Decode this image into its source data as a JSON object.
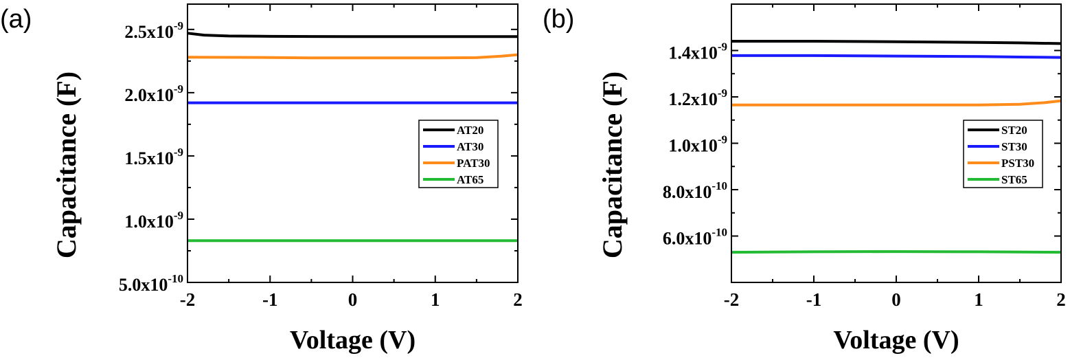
{
  "chart_data": [
    {
      "type": "line",
      "panel_label": "(a)",
      "title": "",
      "xlabel": "Voltage (V)",
      "ylabel": "Capacitance (F)",
      "xlim": [
        -2,
        2
      ],
      "ylim": [
        5e-10,
        2.7e-09
      ],
      "x_ticks": [
        {
          "value": -2,
          "label": "-2"
        },
        {
          "value": -1,
          "label": "-1"
        },
        {
          "value": 0,
          "label": "0"
        },
        {
          "value": 1,
          "label": "1"
        },
        {
          "value": 2,
          "label": "2"
        }
      ],
      "y_ticks": [
        {
          "value": 5e-10,
          "mant": "5.0x10",
          "exp": "-10"
        },
        {
          "value": 1e-09,
          "mant": "1.0x10",
          "exp": "-9"
        },
        {
          "value": 1.5e-09,
          "mant": "1.5x10",
          "exp": "-9"
        },
        {
          "value": 2e-09,
          "mant": "2.0x10",
          "exp": "-9"
        },
        {
          "value": 2.5e-09,
          "mant": "2.5x10",
          "exp": "-9"
        }
      ],
      "legend_position": "middle-right",
      "series": [
        {
          "name": "AT20",
          "color": "#000000",
          "x": [
            -2,
            -1.8,
            -1.5,
            -1,
            -0.5,
            0,
            0.5,
            1,
            1.5,
            2
          ],
          "y": [
            2.47e-09,
            2.455e-09,
            2.448e-09,
            2.445e-09,
            2.444e-09,
            2.443e-09,
            2.443e-09,
            2.443e-09,
            2.443e-09,
            2.443e-09
          ]
        },
        {
          "name": "AT30",
          "color": "#1a1aff",
          "x": [
            -2,
            -1,
            0,
            1,
            2
          ],
          "y": [
            1.92e-09,
            1.92e-09,
            1.92e-09,
            1.92e-09,
            1.92e-09
          ]
        },
        {
          "name": "PAT30",
          "color": "#ff8c1a",
          "x": [
            -2,
            -1,
            -0.5,
            0,
            1,
            1.5,
            1.8,
            2
          ],
          "y": [
            2.28e-09,
            2.278e-09,
            2.275e-09,
            2.275e-09,
            2.275e-09,
            2.277e-09,
            2.288e-09,
            2.3e-09
          ]
        },
        {
          "name": "AT65",
          "color": "#22bb33",
          "x": [
            -2,
            -1,
            0,
            1,
            2
          ],
          "y": [
            8.3e-10,
            8.3e-10,
            8.3e-10,
            8.3e-10,
            8.3e-10
          ]
        }
      ]
    },
    {
      "type": "line",
      "panel_label": "(b)",
      "title": "",
      "xlabel": "Voltage (V)",
      "ylabel": "Capacitance (F)",
      "xlim": [
        -2,
        2
      ],
      "ylim": [
        4e-10,
        1.6e-09
      ],
      "x_ticks": [
        {
          "value": -2,
          "label": "-2"
        },
        {
          "value": -1,
          "label": "-1"
        },
        {
          "value": 0,
          "label": "0"
        },
        {
          "value": 1,
          "label": "1"
        },
        {
          "value": 2,
          "label": "2"
        }
      ],
      "y_ticks": [
        {
          "value": 6e-10,
          "mant": "6.0x10",
          "exp": "-10"
        },
        {
          "value": 8e-10,
          "mant": "8.0x10",
          "exp": "-10"
        },
        {
          "value": 1e-09,
          "mant": "1.0x10",
          "exp": "-9"
        },
        {
          "value": 1.2e-09,
          "mant": "1.2x10",
          "exp": "-9"
        },
        {
          "value": 1.4e-09,
          "mant": "1.4x10",
          "exp": "-9"
        }
      ],
      "legend_position": "middle-right",
      "series": [
        {
          "name": "ST20",
          "color": "#000000",
          "x": [
            -2,
            -1,
            0,
            1,
            1.5,
            2
          ],
          "y": [
            1.44e-09,
            1.44e-09,
            1.438e-09,
            1.435e-09,
            1.433e-09,
            1.43e-09
          ]
        },
        {
          "name": "ST30",
          "color": "#1a1aff",
          "x": [
            -2,
            -1,
            0,
            1,
            1.5,
            2
          ],
          "y": [
            1.378e-09,
            1.378e-09,
            1.376e-09,
            1.374e-09,
            1.372e-09,
            1.37e-09
          ]
        },
        {
          "name": "PST30",
          "color": "#ff8c1a",
          "x": [
            -2,
            -1,
            0,
            1,
            1.5,
            1.8,
            2
          ],
          "y": [
            1.165e-09,
            1.165e-09,
            1.165e-09,
            1.165e-09,
            1.168e-09,
            1.175e-09,
            1.183e-09
          ]
        },
        {
          "name": "ST65",
          "color": "#22bb33",
          "x": [
            -2,
            -1,
            0,
            1,
            2
          ],
          "y": [
            5.3e-10,
            5.32e-10,
            5.33e-10,
            5.32e-10,
            5.3e-10
          ]
        }
      ]
    }
  ]
}
